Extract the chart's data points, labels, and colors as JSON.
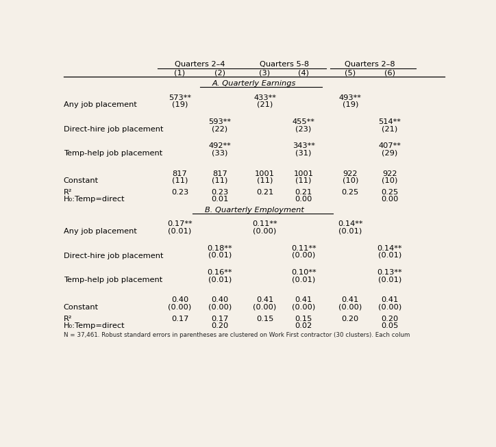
{
  "bg_color": "#f5f0e8",
  "body_fontsize": 8.2,
  "header_group": [
    {
      "label": "Quarters 2–4"
    },
    {
      "label": "Quarters 5-8"
    },
    {
      "label": "Quarters 2–8"
    }
  ],
  "col_numbers": [
    "(1)",
    "(2)",
    "(3)",
    "(4)",
    "(5)",
    "(6)"
  ],
  "section_A": "A. Quarterly Earnings",
  "section_B": "B. Quarterly Employment",
  "rows_A": [
    {
      "label": "Any job placement",
      "vals": [
        "573**",
        "",
        "433**",
        "",
        "493**",
        ""
      ],
      "ses": [
        "(19)",
        "",
        "(21)",
        "",
        "(19)",
        ""
      ]
    },
    {
      "label": "Direct-hire job placement",
      "vals": [
        "",
        "593**",
        "",
        "455**",
        "",
        "514**"
      ],
      "ses": [
        "",
        "(22)",
        "",
        "(23)",
        "",
        "(21)"
      ]
    },
    {
      "label": "Temp-help job placement",
      "vals": [
        "",
        "492**",
        "",
        "343**",
        "",
        "407**"
      ],
      "ses": [
        "",
        "(33)",
        "",
        "(31)",
        "",
        "(29)"
      ]
    },
    {
      "label": "Constant",
      "vals": [
        "817",
        "817",
        "1001",
        "1001",
        "922",
        "922"
      ],
      "ses": [
        "(11)",
        "(11)",
        "(11)",
        "(11)",
        "(10)",
        "(10)"
      ]
    }
  ],
  "stats_A": {
    "R2": [
      "0.23",
      "0.23",
      "0.21",
      "0.21",
      "0.25",
      "0.25"
    ],
    "H0": [
      "",
      "0.01",
      "",
      "0.00",
      "",
      "0.00"
    ]
  },
  "rows_B": [
    {
      "label": "Any job placement",
      "vals": [
        "0.17**",
        "",
        "0.11**",
        "",
        "0.14**",
        ""
      ],
      "ses": [
        "(0.01)",
        "",
        "(0.00)",
        "",
        "(0.01)",
        ""
      ]
    },
    {
      "label": "Direct-hire job placement",
      "vals": [
        "",
        "0.18**",
        "",
        "0.11**",
        "",
        "0.14**"
      ],
      "ses": [
        "",
        "(0.01)",
        "",
        "(0.00)",
        "",
        "(0.01)"
      ]
    },
    {
      "label": "Temp-help job placement",
      "vals": [
        "",
        "0.16**",
        "",
        "0.10**",
        "",
        "0.13**"
      ],
      "ses": [
        "",
        "(0.01)",
        "",
        "(0.01)",
        "",
        "(0.01)"
      ]
    },
    {
      "label": "Constant",
      "vals": [
        "0.40",
        "0.40",
        "0.41",
        "0.41",
        "0.41",
        "0.41"
      ],
      "ses": [
        "(0.00)",
        "(0.00)",
        "(0.00)",
        "(0.00)",
        "(0.00)",
        "(0.00)"
      ]
    }
  ],
  "stats_B": {
    "R2": [
      "0.17",
      "0.17",
      "0.15",
      "0.15",
      "0.20",
      "0.20"
    ],
    "H0": [
      "",
      "0.20",
      "",
      "0.02",
      "",
      "0.05"
    ]
  },
  "footnote": "N = 37,461. Robust standard errors in parentheses are clustered on Work First contractor (30 clusters). Each colum"
}
